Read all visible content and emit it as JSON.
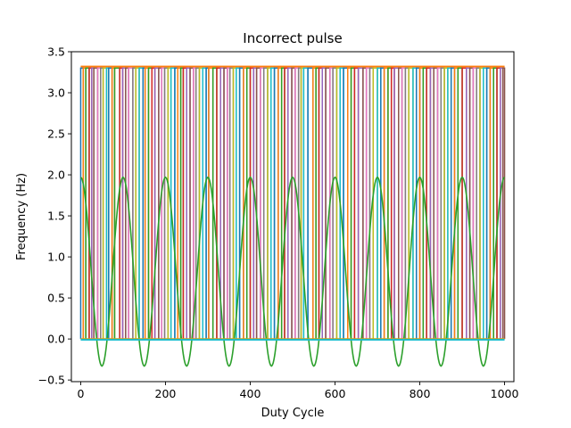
{
  "chart_data": {
    "type": "line",
    "title": "Incorrect pulse",
    "xlabel": "Duty Cycle",
    "ylabel": "Frequency (Hz)",
    "xlim": [
      -22,
      1022
    ],
    "ylim": [
      -0.52,
      3.5
    ],
    "xticks": [
      0,
      200,
      400,
      600,
      800,
      1000
    ],
    "yticks": [
      -0.5,
      0.0,
      0.5,
      1.0,
      1.5,
      2.0,
      2.5,
      3.0,
      3.5
    ],
    "xtick_labels": [
      "0",
      "200",
      "400",
      "600",
      "800",
      "1000"
    ],
    "ytick_labels": [
      "−0.5",
      "0.0",
      "0.5",
      "1.0",
      "1.5",
      "2.0",
      "2.5",
      "3.0",
      "3.5"
    ],
    "grid": false,
    "pulse_high": 3.3,
    "pulse_low": 0.0,
    "pulse_edges": [
      0,
      6,
      12,
      20,
      26,
      31,
      40,
      47,
      53,
      61,
      66,
      74,
      80,
      92,
      99,
      106,
      113,
      123,
      130,
      138,
      147,
      152,
      160,
      168,
      175,
      184,
      191,
      198,
      206,
      213,
      222,
      229,
      236,
      242,
      250,
      258,
      266,
      272,
      280,
      288,
      296,
      302,
      312,
      321,
      330,
      338,
      346,
      352,
      360,
      367,
      375,
      384,
      392,
      400,
      408,
      415,
      424,
      432,
      441,
      449,
      457,
      466,
      474,
      481,
      489,
      498,
      506,
      514,
      520,
      526,
      536,
      548,
      555,
      562,
      570,
      578,
      588,
      595,
      604,
      612,
      620,
      630,
      638,
      646,
      655,
      666,
      674,
      682,
      690,
      700,
      708,
      716,
      725,
      733,
      740,
      750,
      758,
      766,
      774,
      784,
      792,
      800,
      808,
      816,
      825,
      833,
      842,
      850,
      858,
      866,
      874,
      882,
      890,
      900,
      910,
      918,
      926,
      934,
      942,
      950,
      958,
      966,
      974,
      982,
      990,
      996,
      1000
    ],
    "series": [
      {
        "type": "sine",
        "color": "#2ca02c",
        "offset": 0.82,
        "amplitude": 1.15,
        "period": 100,
        "phase_x": 0
      },
      {
        "type": "hline",
        "color": "#ff7f0e",
        "y": 3.32
      },
      {
        "type": "hline",
        "color": "#d4a017",
        "y": 0.0
      },
      {
        "type": "hline",
        "color": "#17becf",
        "y": -0.01
      }
    ],
    "pulse_colors": [
      "#1f77b4",
      "#ff7f0e",
      "#2ca02c",
      "#d62728",
      "#9467bd",
      "#8c564b",
      "#e377c2",
      "#7f7f7f",
      "#bcbd22",
      "#17becf"
    ]
  }
}
